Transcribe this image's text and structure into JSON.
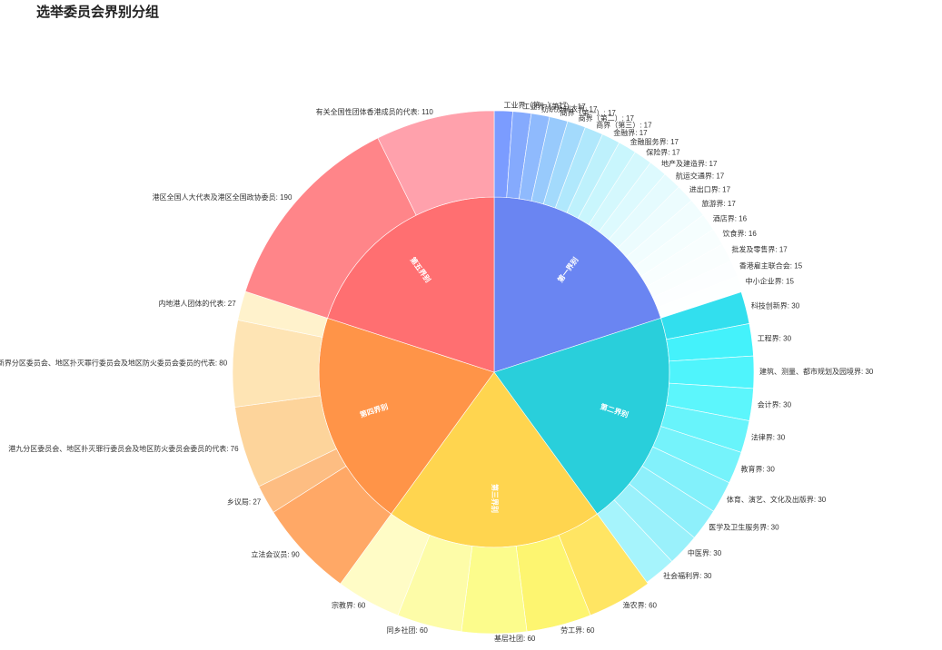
{
  "title": "选举委员会界别分组",
  "chart_data": {
    "type": "sunburst",
    "title": "选举委员会界别分组",
    "groups": [
      {
        "name": "第一界别",
        "color": "#6a85f2",
        "children": [
          {
            "name": "工业界（第一）",
            "value": 17,
            "color": "#7b9cff"
          },
          {
            "name": "工业界（第二）",
            "value": 17,
            "color": "#85aafd"
          },
          {
            "name": "纺织及制衣界",
            "value": 17,
            "color": "#8fbafd"
          },
          {
            "name": "商界（第一）",
            "value": 17,
            "color": "#98cafc"
          },
          {
            "name": "商界（第二）",
            "value": 17,
            "color": "#a3dafc"
          },
          {
            "name": "商界（第三）",
            "value": 17,
            "color": "#b0e8fc"
          },
          {
            "name": "金融界",
            "value": 17,
            "color": "#bef1fc"
          },
          {
            "name": "金融服务界",
            "value": 17,
            "color": "#c9f6fd"
          },
          {
            "name": "保险界",
            "value": 17,
            "color": "#d4f8fd"
          },
          {
            "name": "地产及建造界",
            "value": 17,
            "color": "#ddfafe"
          },
          {
            "name": "航运交通界",
            "value": 17,
            "color": "#e5fbfe"
          },
          {
            "name": "进出口界",
            "value": 17,
            "color": "#ecfcfe"
          },
          {
            "name": "旅游界",
            "value": 17,
            "color": "#f1fdfe"
          },
          {
            "name": "酒店界",
            "value": 16,
            "color": "#f5fefe"
          },
          {
            "name": "饮食界",
            "value": 16,
            "color": "#f8fefe"
          },
          {
            "name": "批发及零售界",
            "value": 17,
            "color": "#fafefe"
          },
          {
            "name": "香港雇主联合会",
            "value": 15,
            "color": "#fcfeff"
          },
          {
            "name": "中小企业界",
            "value": 15,
            "color": "#fdffff"
          }
        ]
      },
      {
        "name": "第二界别",
        "color": "#29cfdb",
        "children": [
          {
            "name": "科技创新界",
            "value": 30,
            "color": "#32dfee"
          },
          {
            "name": "工程界",
            "value": 30,
            "color": "#44f2fb"
          },
          {
            "name": "建筑、测量、都市规划及园境界",
            "value": 30,
            "color": "#4ff4fc"
          },
          {
            "name": "会计界",
            "value": 30,
            "color": "#5cf6fc"
          },
          {
            "name": "法律界",
            "value": 30,
            "color": "#68f4fb"
          },
          {
            "name": "教育界",
            "value": 30,
            "color": "#75f3fb"
          },
          {
            "name": "体育、演艺、文化及出版界",
            "value": 30,
            "color": "#82f1fb"
          },
          {
            "name": "医学及卫生服务界",
            "value": 30,
            "color": "#8ef0fb"
          },
          {
            "name": "中医界",
            "value": 30,
            "color": "#9af1fb"
          },
          {
            "name": "社会福利界",
            "value": 30,
            "color": "#a6f4fc"
          }
        ]
      },
      {
        "name": "第三界别",
        "color": "#ffd54f",
        "children": [
          {
            "name": "渔农界",
            "value": 60,
            "color": "#ffe563"
          },
          {
            "name": "劳工界",
            "value": 60,
            "color": "#fdf570"
          },
          {
            "name": "基层社团",
            "value": 60,
            "color": "#fcfc8c"
          },
          {
            "name": "同乡社团",
            "value": 60,
            "color": "#fdfca8"
          },
          {
            "name": "宗教界",
            "value": 60,
            "color": "#fffcc6"
          }
        ]
      },
      {
        "name": "第四界别",
        "color": "#ff9448",
        "children": [
          {
            "name": "立法会议员",
            "value": 90,
            "color": "#ffa866"
          },
          {
            "name": "乡议局",
            "value": 27,
            "color": "#fdbd82"
          },
          {
            "name": "港九分区委员会、地区扑灭罪行委员会及地区防火委员会委员的代表",
            "value": 76,
            "color": "#fdd49b"
          },
          {
            "name": "新界分区委员会、地区扑灭罪行委员会及地区防火委员会委员的代表",
            "value": 80,
            "color": "#fee4b4"
          },
          {
            "name": "内地港人团体的代表",
            "value": 27,
            "color": "#fff2cc"
          }
        ]
      },
      {
        "name": "第五界别",
        "color": "#ff6f71",
        "children": [
          {
            "name": "港区全国人大代表及港区全国政协委员",
            "value": 190,
            "color": "#ff8589"
          },
          {
            "name": "有关全国性团体香港成员的代表",
            "value": 110,
            "color": "#ffa1ac"
          }
        ]
      }
    ]
  }
}
